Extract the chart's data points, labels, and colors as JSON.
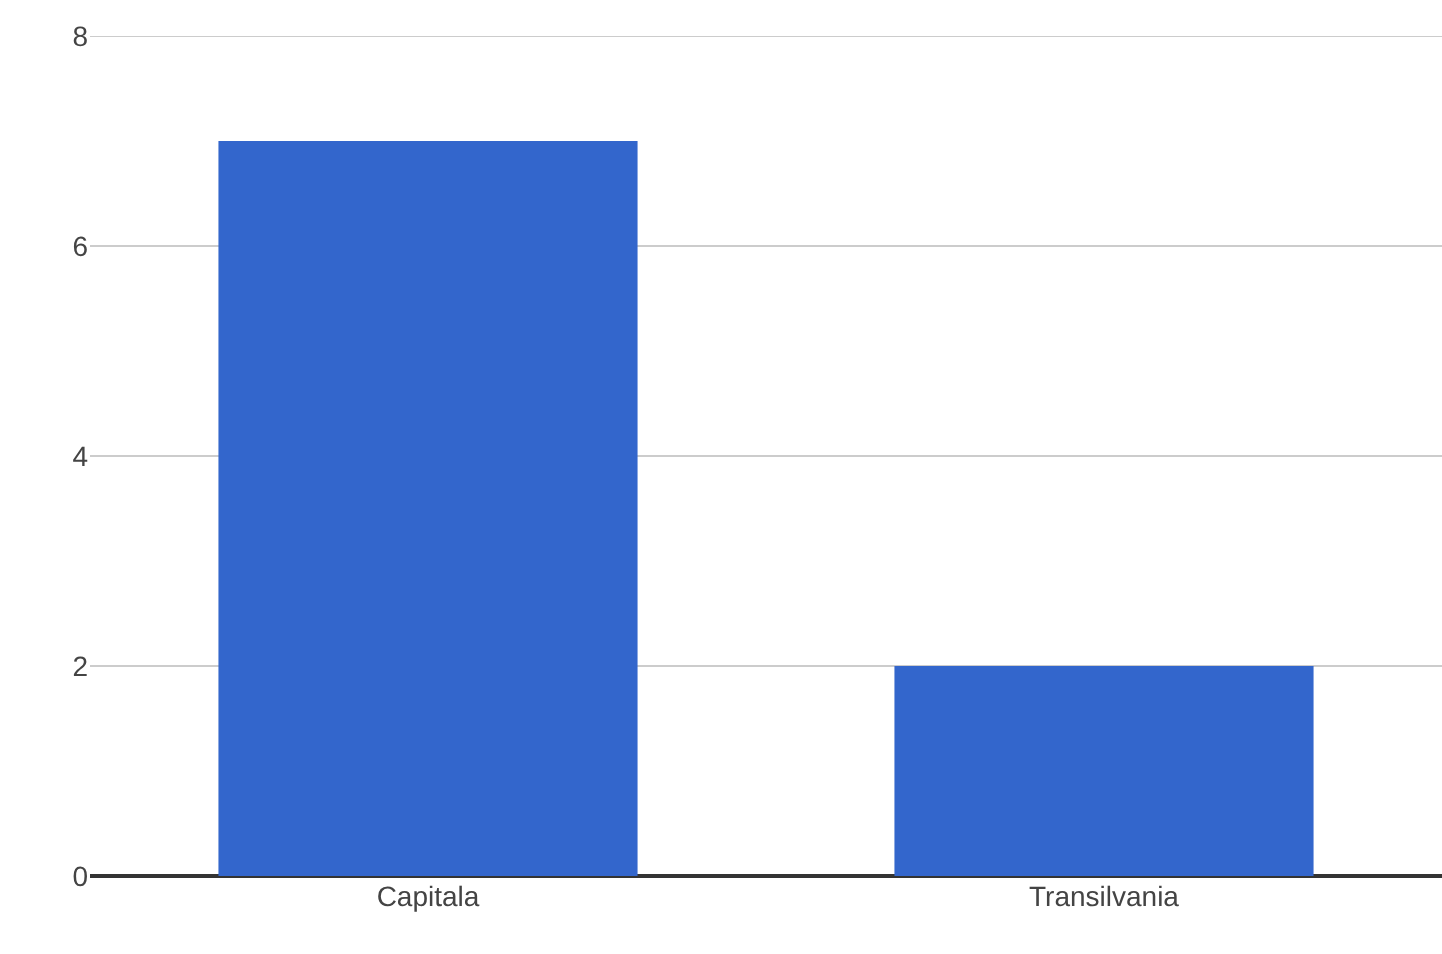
{
  "chart_data": {
    "type": "bar",
    "categories": [
      "Capitala",
      "Transilvania"
    ],
    "values": [
      7,
      2
    ],
    "color": "#3366cc",
    "ylim": [
      0,
      8
    ],
    "yticks": [
      0,
      2,
      4,
      6,
      8
    ],
    "grid": "y"
  }
}
